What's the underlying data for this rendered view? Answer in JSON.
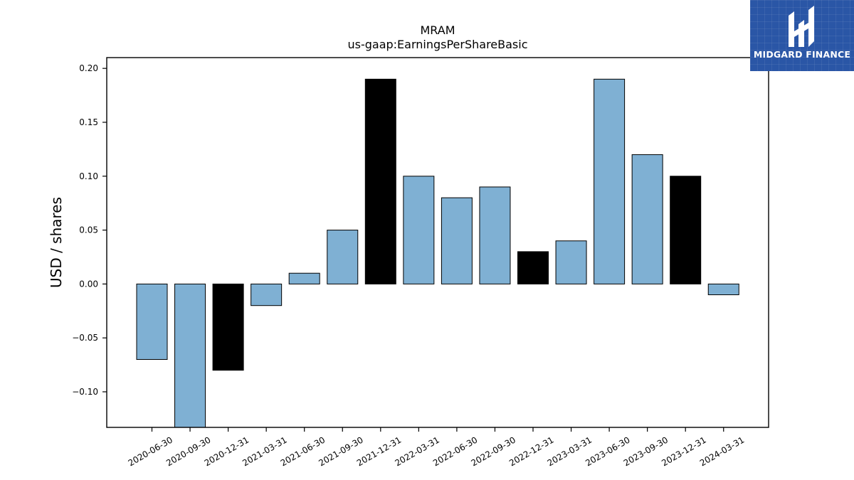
{
  "brand": {
    "name": "MIDGARD FINANCE"
  },
  "colors": {
    "bar_default": "#7fb0d3",
    "bar_q4": "#000000",
    "axis": "#000000"
  },
  "chart_data": {
    "type": "bar",
    "title": "MRAM",
    "subtitle": "us-gaap:EarningsPerShareBasic",
    "xlabel": "",
    "ylabel": "USD / shares",
    "categories": [
      "2020-06-30",
      "2020-09-30",
      "2020-12-31",
      "2021-03-31",
      "2021-06-30",
      "2021-09-30",
      "2021-12-31",
      "2022-03-31",
      "2022-06-30",
      "2022-09-30",
      "2022-12-31",
      "2023-03-31",
      "2023-06-30",
      "2023-09-30",
      "2023-12-31",
      "2024-03-31"
    ],
    "values": [
      -0.07,
      -0.14,
      -0.08,
      -0.02,
      0.01,
      0.05,
      0.19,
      0.1,
      0.08,
      0.09,
      0.03,
      0.04,
      0.19,
      0.12,
      0.1,
      -0.01
    ],
    "highlight": [
      false,
      false,
      true,
      false,
      false,
      false,
      true,
      false,
      false,
      false,
      true,
      false,
      false,
      false,
      true,
      false
    ],
    "ylim": [
      -0.133,
      0.21
    ],
    "yticks": [
      -0.1,
      -0.05,
      0.0,
      0.05,
      0.1,
      0.15,
      0.2
    ],
    "ytick_labels": [
      "−0.10",
      "−0.05",
      "0.00",
      "0.05",
      "0.10",
      "0.15",
      "0.20"
    ],
    "grid": false,
    "legend": "none"
  }
}
